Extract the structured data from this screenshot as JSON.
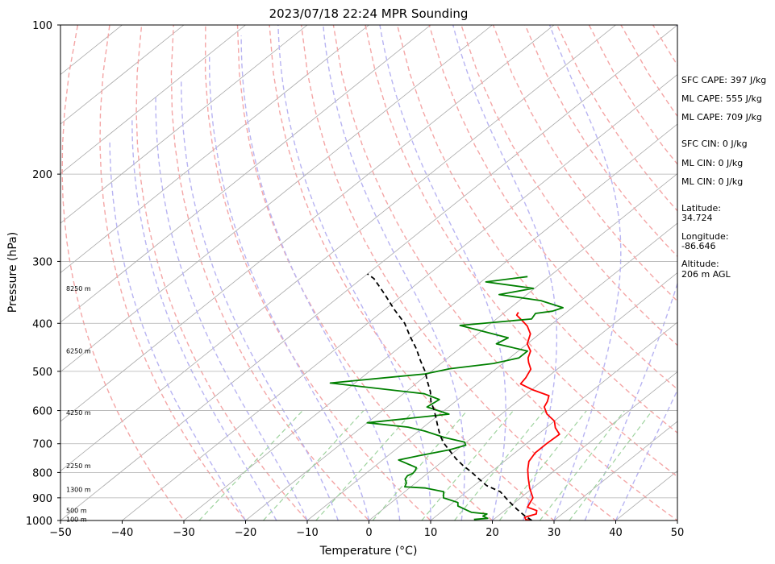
{
  "chart_data": {
    "type": "line",
    "subtype": "skew-t log-p sounding",
    "title": "2023/07/18 22:24 MPR Sounding",
    "xlabel": "Temperature (°C)",
    "ylabel": "Pressure (hPa)",
    "xlim": [
      -50,
      50
    ],
    "ylim": [
      1000,
      100
    ],
    "yscale": "log",
    "x_ticks": [
      -50,
      -40,
      -30,
      -20,
      -10,
      0,
      10,
      20,
      30,
      40,
      50
    ],
    "y_ticks": [
      1000,
      900,
      800,
      700,
      600,
      500,
      400,
      300,
      200,
      100
    ],
    "grid": "horizontal lines at pressure ticks",
    "annotations": [
      "SFC CAPE: 397 J/kg",
      "ML CAPE: 555 J/kg",
      "ML CAPE: 709 J/kg",
      "SFC CIN: 0 J/kg",
      "ML CIN: 0 J/kg",
      "ML CIN: 0 J/kg",
      "Latitude:",
      "34.724",
      "Longitude:",
      "-86.646",
      "Altitude:",
      "206 m AGL"
    ],
    "height_labels": [
      {
        "text": "100 m",
        "p": 995
      },
      {
        "text": "500 m",
        "p": 955
      },
      {
        "text": "1300 m",
        "p": 865
      },
      {
        "text": "2250 m",
        "p": 775
      },
      {
        "text": "4250 m",
        "p": 605
      },
      {
        "text": "6250 m",
        "p": 455
      },
      {
        "text": "8250 m",
        "p": 340
      }
    ],
    "series": [
      {
        "color": "#ff0000",
        "points": [
          [
            26.4,
            1000
          ],
          [
            25.2,
            995
          ],
          [
            24.6,
            985
          ],
          [
            25.8,
            970
          ],
          [
            25.2,
            955
          ],
          [
            23.0,
            940
          ],
          [
            22.0,
            900
          ],
          [
            19.5,
            860
          ],
          [
            17.2,
            820
          ],
          [
            15.5,
            790
          ],
          [
            14.0,
            760
          ],
          [
            13.3,
            730
          ],
          [
            13.3,
            700
          ],
          [
            13.5,
            670
          ],
          [
            11.5,
            650
          ],
          [
            10.0,
            630
          ],
          [
            7.4,
            610
          ],
          [
            5.5,
            590
          ],
          [
            4.9,
            575
          ],
          [
            4.0,
            560
          ],
          [
            0.2,
            545
          ],
          [
            -3.0,
            530
          ],
          [
            -3.4,
            515
          ],
          [
            -4.3,
            495
          ],
          [
            -6.0,
            480
          ],
          [
            -7.0,
            470
          ],
          [
            -8.0,
            455
          ],
          [
            -10.0,
            440
          ],
          [
            -11.5,
            420
          ],
          [
            -13.6,
            405
          ],
          [
            -15.5,
            395
          ],
          [
            -17.5,
            385
          ],
          [
            -17.8,
            380
          ]
        ]
      },
      {
        "color": "#008000",
        "points": [
          [
            16.8,
            995
          ],
          [
            18.8,
            990
          ],
          [
            17.6,
            980
          ],
          [
            17.8,
            970
          ],
          [
            15.0,
            963
          ],
          [
            14.0,
            955
          ],
          [
            11.5,
            935
          ],
          [
            10.8,
            920
          ],
          [
            7.5,
            900
          ],
          [
            6.3,
            875
          ],
          [
            2.6,
            860
          ],
          [
            -1.0,
            855
          ],
          [
            -1.5,
            840
          ],
          [
            -2.5,
            825
          ],
          [
            -2.8,
            812
          ],
          [
            -2.4,
            803
          ],
          [
            -2.6,
            792
          ],
          [
            -3.0,
            782
          ],
          [
            -7.4,
            755
          ],
          [
            -5.0,
            740
          ],
          [
            -1.2,
            720
          ],
          [
            0.5,
            705
          ],
          [
            -0.3,
            695
          ],
          [
            -4.5,
            680
          ],
          [
            -9.0,
            660
          ],
          [
            -12.5,
            648
          ],
          [
            -20.0,
            635
          ],
          [
            -8.5,
            610
          ],
          [
            -13.5,
            590
          ],
          [
            -13.0,
            570
          ],
          [
            -16.6,
            555
          ],
          [
            -34.0,
            528
          ],
          [
            -20.5,
            506
          ],
          [
            -17.5,
            494
          ],
          [
            -11.5,
            482
          ],
          [
            -8.5,
            470
          ],
          [
            -8.5,
            455
          ],
          [
            -15.0,
            440
          ],
          [
            -14.3,
            428
          ],
          [
            -24.6,
            404
          ],
          [
            -14.3,
            392
          ],
          [
            -14.8,
            382
          ],
          [
            -12.5,
            378
          ],
          [
            -11.5,
            372
          ],
          [
            -16.5,
            360
          ],
          [
            -24.5,
            350
          ],
          [
            -20.2,
            340
          ],
          [
            -29.2,
            330
          ],
          [
            -23.5,
            322
          ]
        ]
      },
      {
        "color": "#000000",
        "dashed": true,
        "points": [
          [
            26.4,
            1000
          ],
          [
            24.0,
            975
          ],
          [
            21.8,
            950
          ],
          [
            19.7,
            925
          ],
          [
            17.6,
            900
          ],
          [
            15.5,
            875
          ],
          [
            12.0,
            850
          ],
          [
            9.5,
            825
          ],
          [
            7.0,
            800
          ],
          [
            4.2,
            775
          ],
          [
            1.6,
            750
          ],
          [
            -0.8,
            725
          ],
          [
            -3.3,
            700
          ],
          [
            -5.5,
            675
          ],
          [
            -7.5,
            650
          ],
          [
            -9.5,
            625
          ],
          [
            -11.6,
            600
          ],
          [
            -14.0,
            575
          ],
          [
            -16.0,
            550
          ],
          [
            -18.5,
            525
          ],
          [
            -21.0,
            500
          ],
          [
            -24.0,
            475
          ],
          [
            -27.0,
            450
          ],
          [
            -30.5,
            425
          ],
          [
            -34.0,
            400
          ],
          [
            -38.5,
            375
          ],
          [
            -43.0,
            350
          ],
          [
            -48.0,
            325
          ],
          [
            -50.0,
            318
          ]
        ]
      }
    ]
  }
}
